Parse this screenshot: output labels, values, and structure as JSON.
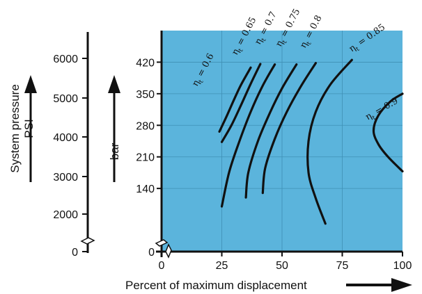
{
  "chart_data": {
    "type": "line",
    "title": "",
    "xlabel": "Percent of maximum displacement",
    "ylabel_bar": "bar",
    "ylabel_psi_line1": "System pressure",
    "ylabel_psi_line2": "PSI",
    "xlim": [
      0,
      100
    ],
    "ylim_bar": [
      0,
      490
    ],
    "xticks": [
      "0",
      "25",
      "50",
      "75",
      "100"
    ],
    "yticks_bar": [
      "0",
      "140",
      "210",
      "280",
      "350",
      "420"
    ],
    "yticks_psi": [
      "0",
      "2000",
      "3000",
      "4000",
      "5000",
      "6000"
    ],
    "grid": true,
    "background_color": "#5bb4dc",
    "line_color": "#111111",
    "series": [
      {
        "name": "ηt = 0.6",
        "symbol": "η",
        "sub": "t",
        "rest": " = 0.6",
        "points": [
          [
            24,
            266
          ],
          [
            27,
            300
          ],
          [
            30,
            336
          ],
          [
            33,
            370
          ],
          [
            37,
            408
          ]
        ]
      },
      {
        "name": "ηt = 0.65",
        "symbol": "η",
        "sub": "t",
        "rest": " = 0.65",
        "points": [
          [
            25,
            243
          ],
          [
            29,
            280
          ],
          [
            33,
            325
          ],
          [
            37,
            372
          ],
          [
            41,
            416
          ]
        ]
      },
      {
        "name": "ηt = 0.7",
        "symbol": "η",
        "sub": "t",
        "rest": " = 0.7",
        "points": [
          [
            25,
            100
          ],
          [
            28,
            175
          ],
          [
            32,
            240
          ],
          [
            37,
            310
          ],
          [
            42,
            368
          ],
          [
            47,
            415
          ]
        ]
      },
      {
        "name": "ηt = 0.75",
        "symbol": "η",
        "sub": "t",
        "rest": " = 0.75",
        "points": [
          [
            35,
            120
          ],
          [
            36,
            175
          ],
          [
            40,
            245
          ],
          [
            45,
            308
          ],
          [
            50,
            362
          ],
          [
            56,
            415
          ]
        ]
      },
      {
        "name": "ηt = 0.8",
        "symbol": "η",
        "sub": "t",
        "rest": " = 0.8",
        "points": [
          [
            42,
            130
          ],
          [
            43,
            185
          ],
          [
            47,
            250
          ],
          [
            52,
            310
          ],
          [
            58,
            368
          ],
          [
            64,
            418
          ]
        ]
      },
      {
        "name": "ηt = 0.85",
        "symbol": "η",
        "sub": "t",
        "rest": " = 0.85",
        "points": [
          [
            68,
            62
          ],
          [
            64,
            118
          ],
          [
            61,
            175
          ],
          [
            61,
            245
          ],
          [
            64,
            310
          ],
          [
            70,
            370
          ],
          [
            79,
            425
          ]
        ]
      },
      {
        "name": "ηt = 0.9",
        "symbol": "η",
        "sub": "t",
        "rest": " = 0.9",
        "points": [
          [
            100,
            178
          ],
          [
            94,
            210
          ],
          [
            90,
            238
          ],
          [
            88,
            268
          ],
          [
            90,
            302
          ],
          [
            95,
            333
          ],
          [
            100,
            350
          ]
        ]
      }
    ]
  }
}
